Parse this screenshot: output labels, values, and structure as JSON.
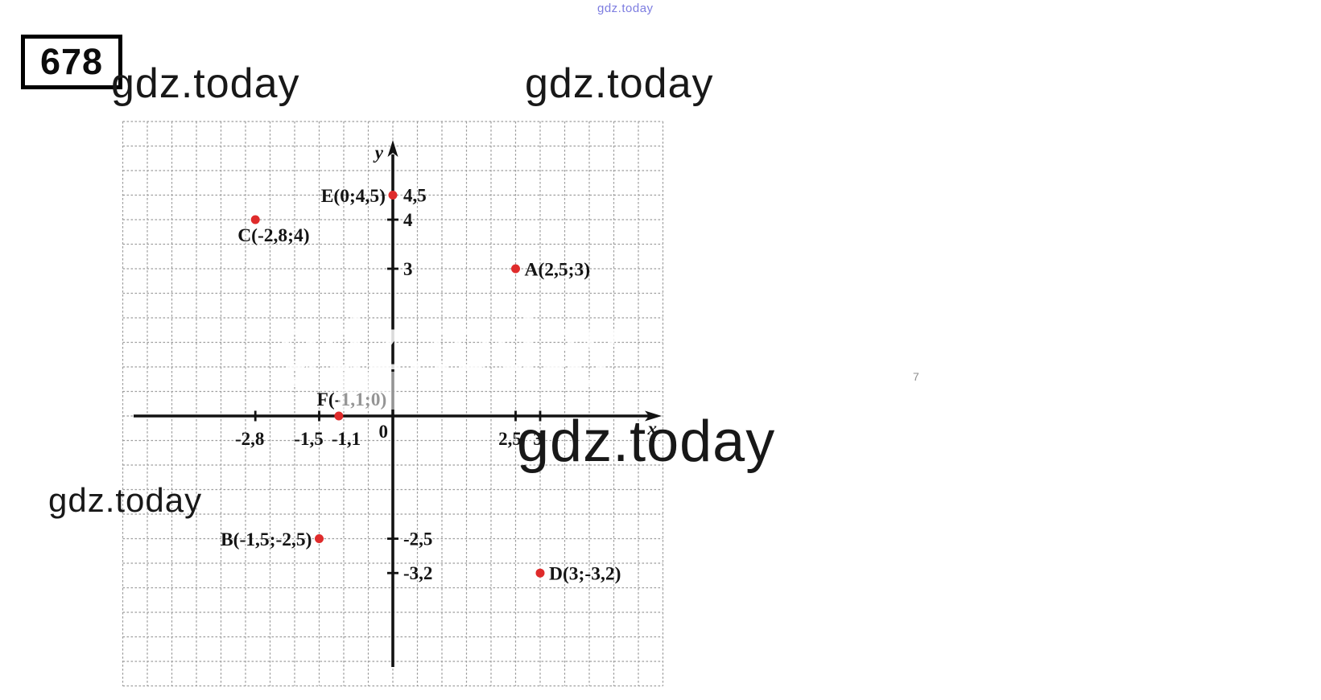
{
  "page": {
    "problem_number": "678",
    "stray_mark": "7"
  },
  "watermarks": {
    "top_small": {
      "text": "gdz.today",
      "color": "#7d7de0"
    },
    "header_left": {
      "text": "gdz.today"
    },
    "header_right": {
      "text": "gdz.today"
    },
    "large_mid_right": {
      "text": "gdz.today"
    },
    "bottom_left": {
      "text": "gdz.today"
    },
    "ghost_center": {
      "text": "gdz.today"
    }
  },
  "chart_data": {
    "type": "scatter",
    "title": "",
    "xlabel": "x",
    "ylabel": "y",
    "origin_label": "0",
    "grid": true,
    "grid_step": 0.5,
    "xlim": [
      -5.5,
      5.5
    ],
    "ylim": [
      -5.5,
      6
    ],
    "point_color": "#df2b2b",
    "axis_color": "#121212",
    "points": [
      {
        "name": "A",
        "label": "A(2,5;3)",
        "x": 2.5,
        "y": 3,
        "label_side": "right"
      },
      {
        "name": "B",
        "label": "B(-1,5;-2,5)",
        "x": -1.5,
        "y": -2.5,
        "label_side": "left"
      },
      {
        "name": "C",
        "label": "C(-2,8;4)",
        "x": -2.8,
        "y": 4,
        "label_side": "below"
      },
      {
        "name": "D",
        "label": "D(3;-3,2)",
        "x": 3,
        "y": -3.2,
        "label_side": "right"
      },
      {
        "name": "E",
        "label": "E(0;4,5)",
        "x": 0,
        "y": 4.5,
        "label_side": "left"
      },
      {
        "name": "F",
        "label": "F(-1,1;0)",
        "x": -1.1,
        "y": 0,
        "label_side": "above"
      }
    ],
    "x_ticks": [
      {
        "value": -2.8,
        "label": "-2,8",
        "mark": true
      },
      {
        "value": -1.5,
        "label": "-1,5",
        "mark": true
      },
      {
        "value": -1.1,
        "label": "-1,1",
        "mark": false
      },
      {
        "value": 2.5,
        "label": "2,5",
        "mark": true
      },
      {
        "value": 3,
        "label": "3",
        "mark": true
      }
    ],
    "y_ticks": [
      {
        "value": 4.5,
        "label": "4,5",
        "mark": false
      },
      {
        "value": 4,
        "label": "4",
        "mark": true
      },
      {
        "value": 3,
        "label": "3",
        "mark": true
      },
      {
        "value": -2.5,
        "label": "-2,5",
        "mark": true
      },
      {
        "value": -3.2,
        "label": "-3,2",
        "mark": true
      }
    ]
  }
}
